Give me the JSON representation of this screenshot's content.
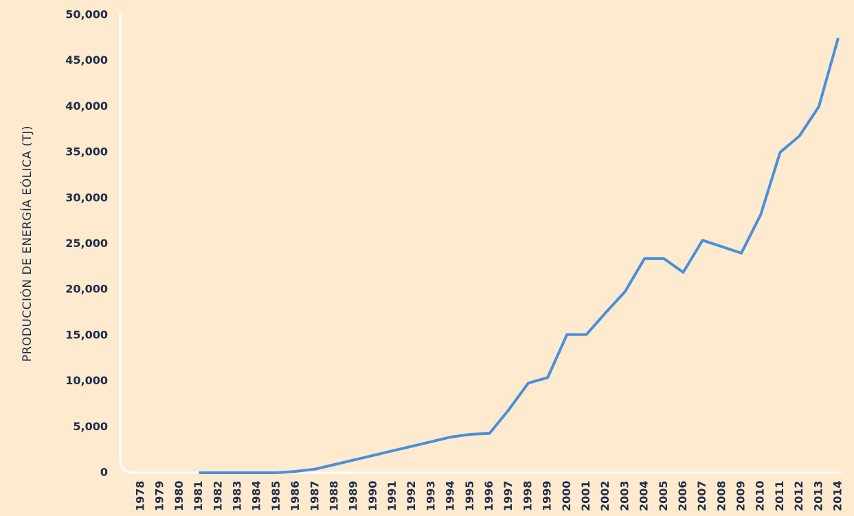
{
  "chart_data": {
    "type": "line",
    "y_label": "PRODUCCIÓN DE ENERGÍA EÓLICA (TJ)",
    "categories": [
      "1978",
      "1979",
      "1980",
      "1981",
      "1982",
      "1983",
      "1984",
      "1985",
      "1986",
      "1987",
      "1988",
      "1989",
      "1990",
      "1991",
      "1992",
      "1993",
      "1994",
      "1995",
      "1996",
      "1997",
      "1998",
      "1999",
      "2000",
      "2001",
      "2002",
      "2003",
      "2004",
      "2005",
      "2006",
      "2007",
      "2008",
      "2009",
      "2010",
      "2011",
      "2012",
      "2013",
      "2014"
    ],
    "series": [
      {
        "color": "#4a90d9",
        "values": [
          null,
          null,
          null,
          0,
          0,
          0,
          0,
          0,
          150,
          400,
          900,
          1400,
          1900,
          2400,
          2900,
          3400,
          3900,
          4200,
          4300,
          6900,
          9800,
          10400,
          15100,
          15100,
          17500,
          19800,
          23400,
          23400,
          21900,
          25400,
          24700,
          24000,
          28200,
          35000,
          36800,
          40000,
          47500
        ]
      }
    ],
    "ylim": [
      0,
      50000
    ],
    "yticks": [
      0,
      {
        "value": 5000,
        "label": "5,000"
      },
      {
        "value": 10000,
        "label": "10,000"
      },
      {
        "value": 15000,
        "label": "15,000"
      },
      {
        "value": 20000,
        "label": "20,000"
      },
      {
        "value": 25000,
        "label": "25,000"
      },
      {
        "value": 30000,
        "label": "30,000"
      },
      {
        "value": 35000,
        "label": "35,000"
      },
      {
        "value": 40000,
        "label": "40,000"
      },
      {
        "value": 45000,
        "label": "45,000"
      },
      {
        "value": 50000,
        "label": "50,000"
      }
    ],
    "grid": false
  }
}
